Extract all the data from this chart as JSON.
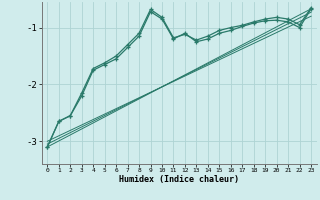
{
  "xlabel": "Humidex (Indice chaleur)",
  "bg_color": "#d0ecec",
  "grid_color": "#aed4d4",
  "line_color": "#2a7a6a",
  "xlim": [
    -0.5,
    23.5
  ],
  "ylim": [
    -3.4,
    -0.55
  ],
  "yticks": [
    -3,
    -2,
    -1
  ],
  "xticks": [
    0,
    1,
    2,
    3,
    4,
    5,
    6,
    7,
    8,
    9,
    10,
    11,
    12,
    13,
    14,
    15,
    16,
    17,
    18,
    19,
    20,
    21,
    22,
    23
  ],
  "line1_x": [
    0,
    1,
    2,
    3,
    4,
    5,
    6,
    7,
    8,
    9,
    10,
    11,
    12,
    13,
    14,
    15,
    16,
    17,
    18,
    19,
    20,
    21,
    22,
    23
  ],
  "line1_y": [
    -3.1,
    -2.65,
    -2.55,
    -2.2,
    -1.75,
    -1.65,
    -1.55,
    -1.35,
    -1.15,
    -0.72,
    -0.85,
    -1.2,
    -1.1,
    -1.25,
    -1.2,
    -1.1,
    -1.05,
    -0.98,
    -0.92,
    -0.88,
    -0.87,
    -0.9,
    -1.0,
    -0.67
  ],
  "line2_x": [
    0,
    1,
    2,
    3,
    4,
    5,
    6,
    7,
    8,
    9,
    10,
    11,
    12,
    13,
    14,
    15,
    16,
    17,
    18,
    19,
    20,
    21,
    22,
    23
  ],
  "line2_y": [
    -3.1,
    -2.65,
    -2.55,
    -2.15,
    -1.72,
    -1.62,
    -1.5,
    -1.3,
    -1.1,
    -0.68,
    -0.82,
    -1.18,
    -1.12,
    -1.22,
    -1.15,
    -1.05,
    -1.0,
    -0.96,
    -0.9,
    -0.85,
    -0.82,
    -0.85,
    -0.95,
    -0.65
  ],
  "line3_x": [
    0,
    23
  ],
  "line3_y": [
    -3.1,
    -0.67
  ],
  "line4_x": [
    0,
    23
  ],
  "line4_y": [
    -3.05,
    -0.73
  ],
  "line5_x": [
    0,
    23
  ],
  "line5_y": [
    -3.0,
    -0.8
  ]
}
